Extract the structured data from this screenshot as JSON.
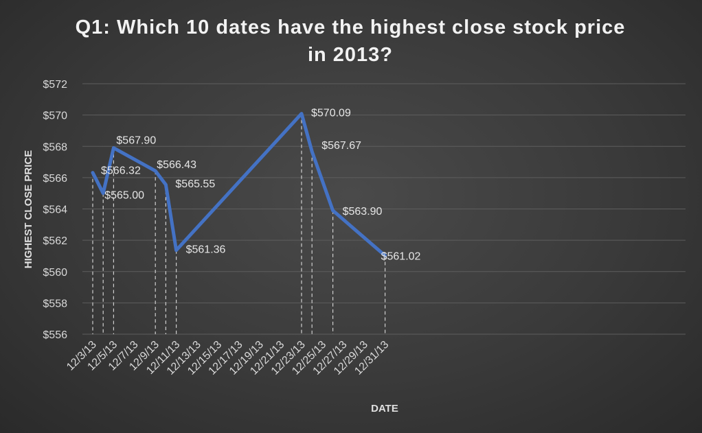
{
  "chart_data": {
    "type": "line",
    "title": "Q1: Which 10 dates have the highest close stock price in 2013?",
    "xlabel": "DATE",
    "ylabel": "HIGHEST CLOSE PRICE",
    "ylim": [
      556,
      572
    ],
    "y_ticks": [
      "$556",
      "$558",
      "$560",
      "$562",
      "$564",
      "$566",
      "$568",
      "$570",
      "$572"
    ],
    "x_ticks": [
      "12/3/13",
      "12/5/13",
      "12/7/13",
      "12/9/13",
      "12/11/13",
      "12/13/13",
      "12/15/13",
      "12/17/13",
      "12/19/13",
      "12/21/13",
      "12/23/13",
      "12/25/13",
      "12/27/13",
      "12/29/13",
      "12/31/13"
    ],
    "series": [
      {
        "color": "#4472c4",
        "points": [
          {
            "x": "12/3/13",
            "y": 566.32,
            "label": "$566.32"
          },
          {
            "x": "12/4/13",
            "y": 565.0,
            "label": "$565.00"
          },
          {
            "x": "12/5/13",
            "y": 567.9,
            "label": "$567.90"
          },
          {
            "x": "12/9/13",
            "y": 566.43,
            "label": "$566.43"
          },
          {
            "x": "12/10/13",
            "y": 565.55,
            "label": "$565.55"
          },
          {
            "x": "12/11/13",
            "y": 561.36,
            "label": "$561.36"
          },
          {
            "x": "12/23/13",
            "y": 570.09,
            "label": "$570.09"
          },
          {
            "x": "12/24/13",
            "y": 567.67,
            "label": "$567.67"
          },
          {
            "x": "12/26/13",
            "y": 563.9,
            "label": "$563.90"
          },
          {
            "x": "12/31/13",
            "y": 561.02,
            "label": "$561.02"
          }
        ]
      }
    ],
    "grid": true,
    "drop_lines": true
  }
}
